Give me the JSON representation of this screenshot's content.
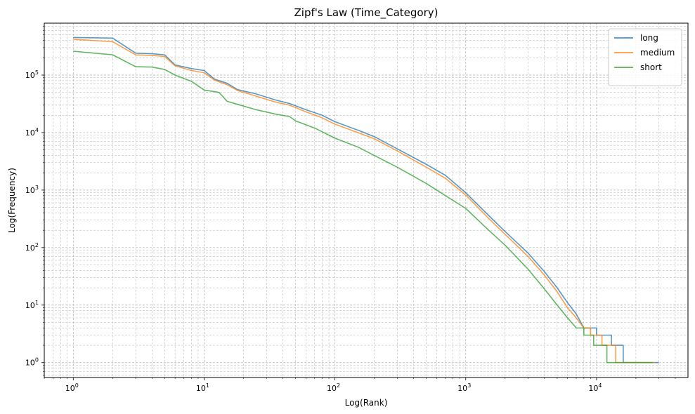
{
  "chart_data": {
    "type": "line",
    "title": "Zipf's Law (Time_Category)",
    "xlabel": "Log(Rank)",
    "ylabel": "Log(Frequency)",
    "x_scale": "log",
    "y_scale": "log",
    "xlim": [
      0.6,
      50000
    ],
    "ylim": [
      0.55,
      800000
    ],
    "grid": true,
    "legend_position": "top-right",
    "x_ticks": [
      {
        "value": 1,
        "base": "10",
        "exp": "0"
      },
      {
        "value": 10,
        "base": "10",
        "exp": "1"
      },
      {
        "value": 100,
        "base": "10",
        "exp": "2"
      },
      {
        "value": 1000,
        "base": "10",
        "exp": "3"
      },
      {
        "value": 10000,
        "base": "10",
        "exp": "4"
      }
    ],
    "y_ticks": [
      {
        "value": 1,
        "base": "10",
        "exp": "0"
      },
      {
        "value": 10,
        "base": "10",
        "exp": "1"
      },
      {
        "value": 100,
        "base": "10",
        "exp": "2"
      },
      {
        "value": 1000,
        "base": "10",
        "exp": "3"
      },
      {
        "value": 10000,
        "base": "10",
        "exp": "4"
      },
      {
        "value": 100000,
        "base": "10",
        "exp": "5"
      }
    ],
    "series": [
      {
        "name": "long",
        "color": "#1f77b4",
        "points": [
          [
            1,
            450000
          ],
          [
            2,
            440000
          ],
          [
            3,
            240000
          ],
          [
            4,
            235000
          ],
          [
            5,
            225000
          ],
          [
            6,
            150000
          ],
          [
            8,
            130000
          ],
          [
            10,
            120000
          ],
          [
            12,
            85000
          ],
          [
            15,
            72000
          ],
          [
            18,
            56000
          ],
          [
            25,
            47000
          ],
          [
            35,
            37000
          ],
          [
            45,
            32000
          ],
          [
            60,
            25000
          ],
          [
            80,
            20000
          ],
          [
            100,
            15500
          ],
          [
            150,
            11000
          ],
          [
            200,
            8500
          ],
          [
            300,
            5200
          ],
          [
            500,
            2800
          ],
          [
            700,
            1800
          ],
          [
            1000,
            900
          ],
          [
            1500,
            360
          ],
          [
            2000,
            190
          ],
          [
            3000,
            80
          ],
          [
            4000,
            38
          ],
          [
            5000,
            20
          ],
          [
            6000,
            11
          ],
          [
            7000,
            7
          ],
          [
            8000,
            4
          ],
          [
            10000,
            4
          ],
          [
            10001,
            3
          ],
          [
            13000,
            3
          ],
          [
            13001,
            2
          ],
          [
            16000,
            2
          ],
          [
            16001,
            1
          ],
          [
            30000,
            1
          ]
        ]
      },
      {
        "name": "medium",
        "color": "#ff7f0e",
        "points": [
          [
            1,
            420000
          ],
          [
            2,
            380000
          ],
          [
            3,
            225000
          ],
          [
            4,
            220000
          ],
          [
            5,
            210000
          ],
          [
            6,
            145000
          ],
          [
            8,
            120000
          ],
          [
            10,
            110000
          ],
          [
            12,
            82000
          ],
          [
            15,
            68000
          ],
          [
            18,
            54000
          ],
          [
            25,
            43000
          ],
          [
            35,
            34000
          ],
          [
            45,
            30000
          ],
          [
            60,
            23000
          ],
          [
            80,
            18000
          ],
          [
            100,
            14000
          ],
          [
            150,
            10000
          ],
          [
            200,
            7800
          ],
          [
            300,
            4800
          ],
          [
            500,
            2500
          ],
          [
            700,
            1600
          ],
          [
            1000,
            820
          ],
          [
            1500,
            320
          ],
          [
            2000,
            170
          ],
          [
            3000,
            70
          ],
          [
            4000,
            33
          ],
          [
            5000,
            17
          ],
          [
            6000,
            9
          ],
          [
            7000,
            6
          ],
          [
            8000,
            4
          ],
          [
            9000,
            4
          ],
          [
            9001,
            3
          ],
          [
            11000,
            3
          ],
          [
            11001,
            2
          ],
          [
            14000,
            2
          ],
          [
            14001,
            1
          ],
          [
            28000,
            1
          ]
        ]
      },
      {
        "name": "short",
        "color": "#2ca02c",
        "points": [
          [
            1,
            260000
          ],
          [
            2,
            225000
          ],
          [
            3,
            140000
          ],
          [
            4,
            138000
          ],
          [
            5,
            125000
          ],
          [
            6,
            100000
          ],
          [
            8,
            78000
          ],
          [
            10,
            55000
          ],
          [
            13,
            50000
          ],
          [
            15,
            35000
          ],
          [
            18,
            31000
          ],
          [
            25,
            25000
          ],
          [
            35,
            21000
          ],
          [
            45,
            19000
          ],
          [
            50,
            16000
          ],
          [
            70,
            12000
          ],
          [
            100,
            8000
          ],
          [
            150,
            5600
          ],
          [
            200,
            4000
          ],
          [
            300,
            2500
          ],
          [
            500,
            1300
          ],
          [
            700,
            800
          ],
          [
            1000,
            480
          ],
          [
            1500,
            200
          ],
          [
            2000,
            110
          ],
          [
            3000,
            42
          ],
          [
            4000,
            19
          ],
          [
            5000,
            10
          ],
          [
            6000,
            6
          ],
          [
            7000,
            4
          ],
          [
            8000,
            4
          ],
          [
            8001,
            3
          ],
          [
            9500,
            3
          ],
          [
            9501,
            2
          ],
          [
            12000,
            2
          ],
          [
            12001,
            1
          ],
          [
            27000,
            1
          ]
        ]
      }
    ]
  }
}
